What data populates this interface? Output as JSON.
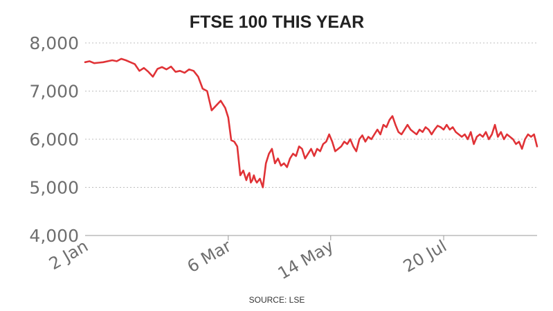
{
  "chart_data": {
    "type": "line",
    "title": "FTSE 100 THIS YEAR",
    "source": "SOURCE: LSE",
    "ylim": [
      4000,
      8000
    ],
    "yticks": [
      {
        "value": 4000,
        "label": "4,000"
      },
      {
        "value": 5000,
        "label": "5,000"
      },
      {
        "value": 6000,
        "label": "6,000"
      },
      {
        "value": 7000,
        "label": "7,000"
      },
      {
        "value": 8000,
        "label": "8,000"
      }
    ],
    "xlim": [
      0,
      300
    ],
    "xticks": [
      {
        "value": 0,
        "label": "2 Jan"
      },
      {
        "value": 95,
        "label": "6 Mar"
      },
      {
        "value": 163,
        "label": "14 May"
      },
      {
        "value": 238,
        "label": "20 Jul"
      }
    ],
    "grid": true,
    "colors": {
      "line": "#e03236"
    },
    "series": [
      {
        "x": [
          0,
          3,
          6,
          9,
          12,
          15,
          18,
          21,
          24,
          27,
          30,
          33,
          36,
          39,
          42,
          45,
          48,
          51,
          54,
          57,
          60,
          63,
          66,
          69,
          72,
          75,
          78,
          81,
          84,
          87,
          90,
          93,
          95,
          97,
          99,
          101,
          103,
          105,
          107,
          108,
          109,
          110,
          111,
          112,
          113,
          114,
          116,
          118,
          120,
          122,
          124,
          126,
          128,
          130,
          132,
          134,
          136,
          138,
          140,
          142,
          144,
          146,
          148,
          150,
          152,
          154,
          156,
          158,
          160,
          162,
          164,
          166,
          168,
          170,
          172,
          174,
          176,
          178,
          180,
          182,
          184,
          186,
          188,
          190,
          192,
          194,
          196,
          198,
          200,
          202,
          204,
          206,
          208,
          210,
          212,
          214,
          216,
          218,
          220,
          222,
          224,
          226,
          228,
          230,
          232,
          234,
          236,
          238,
          240,
          242,
          244,
          246,
          248,
          250,
          252,
          254,
          256,
          258,
          260,
          262,
          264,
          266,
          268,
          270,
          272,
          274,
          276,
          278,
          280,
          282,
          284,
          286,
          288,
          290,
          292,
          294,
          296,
          298,
          300
        ],
        "y": [
          7600,
          7620,
          7580,
          7590,
          7600,
          7620,
          7640,
          7620,
          7670,
          7640,
          7600,
          7560,
          7420,
          7480,
          7400,
          7300,
          7460,
          7500,
          7450,
          7510,
          7400,
          7420,
          7380,
          7450,
          7420,
          7300,
          7050,
          7000,
          6600,
          6700,
          6800,
          6650,
          6450,
          5980,
          5950,
          5850,
          5250,
          5350,
          5150,
          5250,
          5300,
          5100,
          5150,
          5250,
          5150,
          5100,
          5180,
          5000,
          5500,
          5700,
          5800,
          5500,
          5600,
          5450,
          5500,
          5420,
          5600,
          5700,
          5650,
          5850,
          5800,
          5600,
          5700,
          5800,
          5650,
          5800,
          5750,
          5900,
          5950,
          6100,
          5950,
          5750,
          5800,
          5850,
          5950,
          5900,
          6000,
          5850,
          5750,
          6000,
          6080,
          5950,
          6050,
          6000,
          6100,
          6200,
          6100,
          6300,
          6250,
          6400,
          6480,
          6300,
          6150,
          6100,
          6200,
          6300,
          6200,
          6150,
          6100,
          6200,
          6150,
          6250,
          6200,
          6100,
          6200,
          6280,
          6250,
          6200,
          6300,
          6200,
          6250,
          6150,
          6100,
          6050,
          6100,
          6000,
          6150,
          5900,
          6050,
          6100,
          6050,
          6150,
          6000,
          6100,
          6300,
          6050,
          6150,
          6000,
          6100,
          6050,
          6000,
          5900,
          5950,
          5800,
          6000,
          6100,
          6050,
          6100,
          5850
        ]
      }
    ]
  }
}
